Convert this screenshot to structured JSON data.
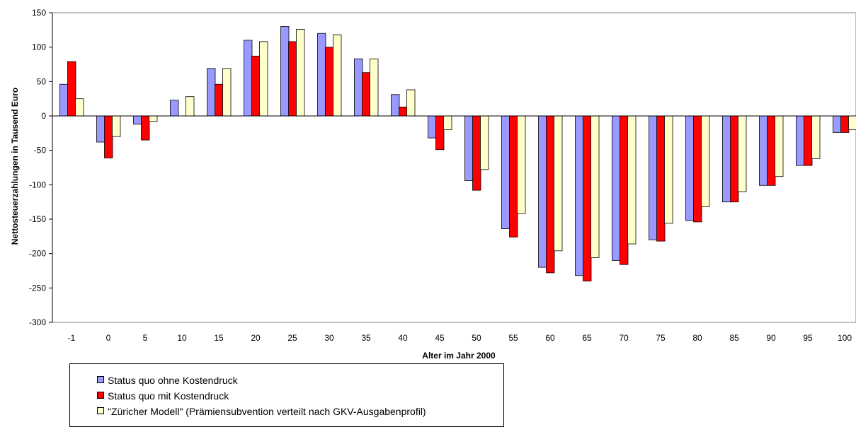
{
  "chart_data": {
    "type": "bar",
    "title": "",
    "xlabel": "Alter im Jahr 2000",
    "ylabel": "Nettosteuerzahlungen in Tausend Euro",
    "ylim": [
      -300,
      150
    ],
    "yticks": [
      150,
      100,
      50,
      0,
      -50,
      -100,
      -150,
      -200,
      -250,
      -300
    ],
    "categories": [
      "-1",
      "0",
      "5",
      "10",
      "15",
      "20",
      "25",
      "30",
      "35",
      "40",
      "45",
      "50",
      "55",
      "60",
      "65",
      "70",
      "75",
      "80",
      "85",
      "90",
      "95",
      "100"
    ],
    "series": [
      {
        "name": "Status quo ohne Kostendruck",
        "color": "#9999ff",
        "values": [
          46,
          -38,
          -12,
          23,
          69,
          110,
          130,
          120,
          83,
          31,
          -32,
          -94,
          -164,
          -220,
          -232,
          -210,
          -180,
          -152,
          -125,
          -101,
          -72,
          -24
        ]
      },
      {
        "name": "Status quo mit Kostendruck",
        "color": "#ff0000",
        "values": [
          79,
          -61,
          -35,
          0,
          46,
          87,
          108,
          100,
          63,
          13,
          -49,
          -108,
          -176,
          -228,
          -240,
          -216,
          -182,
          -154,
          -125,
          -101,
          -72,
          -24
        ]
      },
      {
        "name": "\"Züricher Modell\" (Prämiensubvention verteilt nach GKV-Ausgabenprofil)",
        "color": "#ffffcc",
        "values": [
          25,
          -30,
          -8,
          28,
          69,
          108,
          126,
          118,
          83,
          38,
          -20,
          -78,
          -142,
          -196,
          -206,
          -186,
          -156,
          -132,
          -110,
          -88,
          -62,
          -20
        ]
      }
    ],
    "grid": false,
    "legend_position": "bottom-left"
  }
}
